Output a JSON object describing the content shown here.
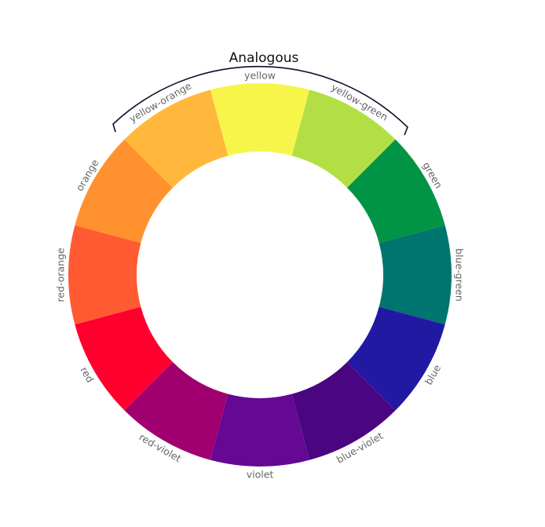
{
  "title": "Analogous",
  "colors": {
    "label_text": "#666666",
    "title_text": "#111111",
    "bracket": "#0d0d2b",
    "background": "#ffffff"
  },
  "chart_data": {
    "type": "pie",
    "variant": "donut-color-wheel",
    "title": "Analogous",
    "center": [
      331,
      350
    ],
    "outer_radius": 244,
    "inner_radius": 157,
    "label_radius": 254,
    "segment_span_deg": 30,
    "categories": [
      "yellow",
      "yellow-green",
      "green",
      "blue-green",
      "blue",
      "blue-violet",
      "violet",
      "red-violet",
      "red",
      "red-orange",
      "orange",
      "yellow-orange"
    ],
    "values": [
      1,
      1,
      1,
      1,
      1,
      1,
      1,
      1,
      1,
      1,
      1,
      1
    ],
    "segments": [
      {
        "label": "yellow",
        "color": "#F8F54A",
        "angle_deg": 0
      },
      {
        "label": "yellow-green",
        "color": "#B2E044",
        "angle_deg": 30
      },
      {
        "label": "green",
        "color": "#009444",
        "angle_deg": 60
      },
      {
        "label": "blue-green",
        "color": "#00746E",
        "angle_deg": 90
      },
      {
        "label": "blue",
        "color": "#2219A3",
        "angle_deg": 120
      },
      {
        "label": "blue-violet",
        "color": "#4A0580",
        "angle_deg": 150
      },
      {
        "label": "violet",
        "color": "#650893",
        "angle_deg": 180
      },
      {
        "label": "red-violet",
        "color": "#A0006F",
        "angle_deg": 210
      },
      {
        "label": "red",
        "color": "#FF002E",
        "angle_deg": 240
      },
      {
        "label": "red-orange",
        "color": "#FF5A31",
        "angle_deg": 270
      },
      {
        "label": "orange",
        "color": "#FF922F",
        "angle_deg": 300
      },
      {
        "label": "yellow-orange",
        "color": "#FFB83B",
        "angle_deg": 330
      }
    ],
    "annotation": {
      "text": "Analogous",
      "bracket_covers": [
        "yellow-orange",
        "yellow",
        "yellow-green"
      ]
    }
  }
}
